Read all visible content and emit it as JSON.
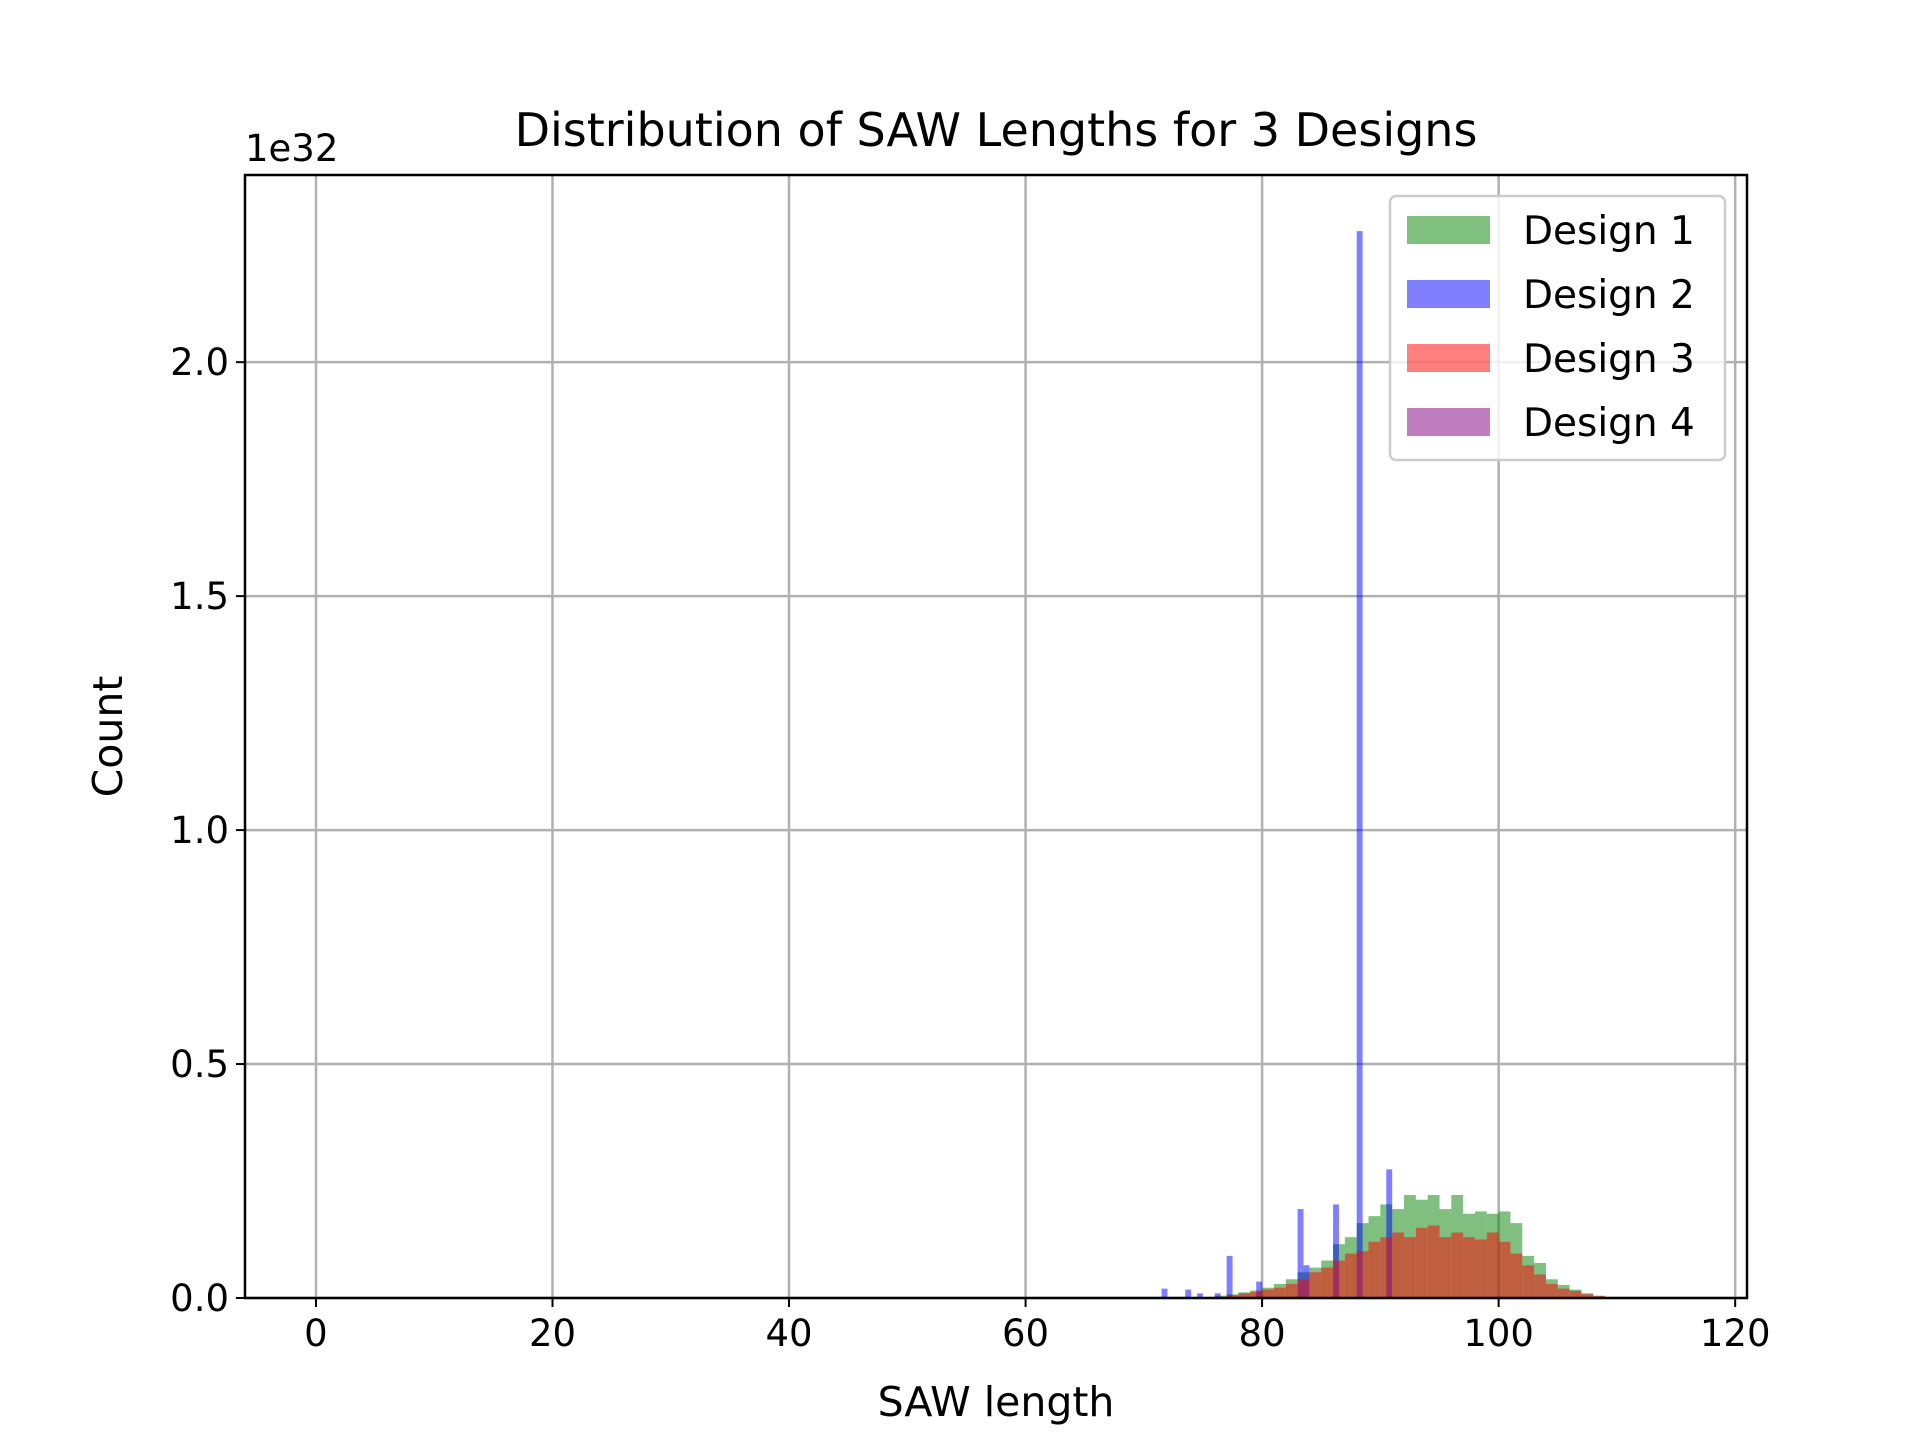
{
  "chart_data": {
    "type": "histogram",
    "title": "Distribution of SAW Lengths for 3 Designs",
    "xlabel": "SAW length",
    "ylabel": "Count",
    "y_offset_label": "1e32",
    "y_scale": 1e+32,
    "xlim": [
      -6,
      121
    ],
    "ylim": [
      0,
      2.4
    ],
    "xticks": [
      0,
      20,
      40,
      60,
      80,
      100,
      120
    ],
    "yticks": [
      0.0,
      0.5,
      1.0,
      1.5,
      2.0
    ],
    "ytick_labels": [
      "0.0",
      "0.5",
      "1.0",
      "1.5",
      "2.0"
    ],
    "grid": true,
    "legend_position": "top-right",
    "series": [
      {
        "name": "Design 1",
        "color": "#008000",
        "opacity": 0.5,
        "bins": [
          [
            76,
            77,
            0.005
          ],
          [
            77,
            78,
            0.008
          ],
          [
            78,
            79,
            0.012
          ],
          [
            79,
            80,
            0.016
          ],
          [
            80,
            81,
            0.022
          ],
          [
            81,
            82,
            0.03
          ],
          [
            82,
            83,
            0.04
          ],
          [
            83,
            84,
            0.055
          ],
          [
            84,
            85,
            0.065
          ],
          [
            85,
            86,
            0.08
          ],
          [
            86,
            87,
            0.115
          ],
          [
            87,
            88,
            0.13
          ],
          [
            88,
            89,
            0.16
          ],
          [
            89,
            90,
            0.175
          ],
          [
            90,
            91,
            0.2
          ],
          [
            91,
            92,
            0.19
          ],
          [
            92,
            93,
            0.22
          ],
          [
            93,
            94,
            0.21
          ],
          [
            94,
            95,
            0.22
          ],
          [
            95,
            96,
            0.19
          ],
          [
            96,
            97,
            0.22
          ],
          [
            97,
            98,
            0.18
          ],
          [
            98,
            99,
            0.185
          ],
          [
            99,
            100,
            0.18
          ],
          [
            100,
            101,
            0.185
          ],
          [
            101,
            102,
            0.16
          ],
          [
            102,
            103,
            0.09
          ],
          [
            103,
            104,
            0.075
          ],
          [
            104,
            105,
            0.04
          ],
          [
            105,
            106,
            0.028
          ],
          [
            106,
            107,
            0.018
          ],
          [
            107,
            108,
            0.01
          ],
          [
            108,
            109,
            0.005
          ]
        ]
      },
      {
        "name": "Design 2",
        "color": "#0000ff",
        "opacity": 0.5,
        "bins": [
          [
            71.5,
            72,
            0.02
          ],
          [
            73.5,
            74,
            0.018
          ],
          [
            74.5,
            75,
            0.01
          ],
          [
            76,
            76.5,
            0.01
          ],
          [
            77,
            77.5,
            0.09
          ],
          [
            79.5,
            80,
            0.035
          ],
          [
            83,
            83.5,
            0.19
          ],
          [
            83.5,
            84,
            0.07
          ],
          [
            86,
            86.5,
            0.2
          ],
          [
            88,
            88.5,
            2.28
          ],
          [
            90.5,
            91,
            0.275
          ]
        ]
      },
      {
        "name": "Design 3",
        "color": "#ff0000",
        "opacity": 0.5,
        "bins": [
          [
            77,
            78,
            0.006
          ],
          [
            78,
            79,
            0.01
          ],
          [
            79,
            80,
            0.013
          ],
          [
            80,
            81,
            0.018
          ],
          [
            81,
            82,
            0.022
          ],
          [
            82,
            83,
            0.03
          ],
          [
            83,
            84,
            0.04
          ],
          [
            84,
            85,
            0.055
          ],
          [
            85,
            86,
            0.065
          ],
          [
            86,
            87,
            0.08
          ],
          [
            87,
            88,
            0.095
          ],
          [
            88,
            89,
            0.1
          ],
          [
            89,
            90,
            0.12
          ],
          [
            90,
            91,
            0.13
          ],
          [
            91,
            92,
            0.14
          ],
          [
            92,
            93,
            0.13
          ],
          [
            93,
            94,
            0.15
          ],
          [
            94,
            95,
            0.155
          ],
          [
            95,
            96,
            0.13
          ],
          [
            96,
            97,
            0.14
          ],
          [
            97,
            98,
            0.13
          ],
          [
            98,
            99,
            0.125
          ],
          [
            99,
            100,
            0.14
          ],
          [
            100,
            101,
            0.12
          ],
          [
            101,
            102,
            0.095
          ],
          [
            102,
            103,
            0.07
          ],
          [
            103,
            104,
            0.05
          ],
          [
            104,
            105,
            0.03
          ],
          [
            105,
            106,
            0.02
          ],
          [
            106,
            107,
            0.015
          ],
          [
            107,
            108,
            0.008
          ],
          [
            108,
            109,
            0.004
          ]
        ]
      },
      {
        "name": "Design 4",
        "color": "#800080",
        "opacity": 0.5,
        "bins": []
      }
    ]
  }
}
